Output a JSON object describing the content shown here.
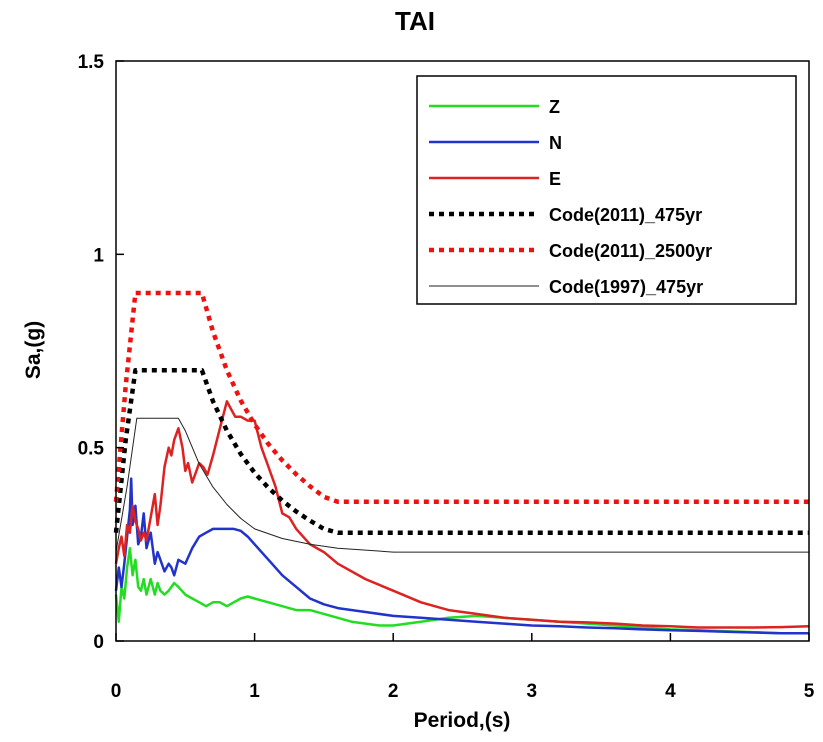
{
  "chart_data": {
    "type": "line",
    "title": "TAI",
    "xlabel": "Period,(s)",
    "ylabel": "Sa,(g)",
    "xlim": [
      0,
      5
    ],
    "ylim": [
      0,
      1.5
    ],
    "x_ticks": [
      {
        "value": 0,
        "label": "0"
      },
      {
        "value": 1,
        "label": "1"
      },
      {
        "value": 2,
        "label": "2"
      },
      {
        "value": 3,
        "label": "3"
      },
      {
        "value": 4,
        "label": "4"
      },
      {
        "value": 5,
        "label": "5"
      }
    ],
    "y_ticks": [
      {
        "value": 0,
        "label": "0"
      },
      {
        "value": 0.5,
        "label": "0.5"
      },
      {
        "value": 1,
        "label": "1"
      },
      {
        "value": 1.5,
        "label": "1.5"
      }
    ],
    "grid": false,
    "legend_position": "top-right",
    "series": [
      {
        "name": "Z",
        "color": "#22dd22",
        "style": "solid",
        "x": [
          0,
          0.02,
          0.04,
          0.06,
          0.08,
          0.1,
          0.12,
          0.14,
          0.16,
          0.18,
          0.2,
          0.22,
          0.25,
          0.28,
          0.3,
          0.32,
          0.35,
          0.38,
          0.4,
          0.42,
          0.45,
          0.5,
          0.55,
          0.6,
          0.65,
          0.7,
          0.75,
          0.8,
          0.85,
          0.9,
          0.95,
          1.0,
          1.05,
          1.1,
          1.2,
          1.3,
          1.4,
          1.5,
          1.6,
          1.7,
          1.8,
          1.9,
          2.0,
          2.2,
          2.4,
          2.6,
          2.8,
          3.0,
          3.2,
          3.4,
          3.6,
          3.8,
          4.0,
          4.2,
          4.4,
          4.6,
          4.8,
          5.0
        ],
        "y": [
          0.12,
          0.05,
          0.14,
          0.11,
          0.19,
          0.24,
          0.17,
          0.21,
          0.14,
          0.13,
          0.16,
          0.12,
          0.16,
          0.12,
          0.15,
          0.13,
          0.12,
          0.13,
          0.14,
          0.15,
          0.14,
          0.12,
          0.11,
          0.1,
          0.09,
          0.1,
          0.1,
          0.09,
          0.1,
          0.11,
          0.115,
          0.11,
          0.105,
          0.1,
          0.09,
          0.08,
          0.08,
          0.07,
          0.06,
          0.05,
          0.045,
          0.04,
          0.04,
          0.05,
          0.06,
          0.065,
          0.06,
          0.055,
          0.05,
          0.045,
          0.04,
          0.035,
          0.03,
          0.028,
          0.025,
          0.023,
          0.02,
          0.02
        ]
      },
      {
        "name": "N",
        "color": "#2233cc",
        "style": "solid",
        "x": [
          0,
          0.02,
          0.04,
          0.06,
          0.08,
          0.1,
          0.11,
          0.12,
          0.14,
          0.16,
          0.18,
          0.2,
          0.22,
          0.25,
          0.28,
          0.3,
          0.32,
          0.35,
          0.38,
          0.4,
          0.42,
          0.45,
          0.5,
          0.55,
          0.6,
          0.65,
          0.7,
          0.75,
          0.8,
          0.85,
          0.9,
          0.95,
          1.0,
          1.1,
          1.2,
          1.3,
          1.4,
          1.5,
          1.6,
          1.8,
          2.0,
          2.2,
          2.4,
          2.6,
          2.8,
          3.0,
          3.2,
          3.4,
          3.6,
          3.8,
          4.0,
          4.2,
          4.4,
          4.6,
          4.8,
          5.0
        ],
        "y": [
          0.13,
          0.19,
          0.14,
          0.2,
          0.27,
          0.34,
          0.42,
          0.3,
          0.35,
          0.25,
          0.27,
          0.33,
          0.24,
          0.28,
          0.2,
          0.23,
          0.21,
          0.18,
          0.2,
          0.19,
          0.17,
          0.21,
          0.2,
          0.24,
          0.27,
          0.28,
          0.29,
          0.29,
          0.29,
          0.29,
          0.285,
          0.27,
          0.25,
          0.21,
          0.17,
          0.14,
          0.11,
          0.095,
          0.085,
          0.075,
          0.065,
          0.06,
          0.055,
          0.05,
          0.045,
          0.04,
          0.038,
          0.035,
          0.033,
          0.03,
          0.028,
          0.026,
          0.024,
          0.022,
          0.02,
          0.02
        ]
      },
      {
        "name": "E",
        "color": "#dd2222",
        "style": "solid",
        "x": [
          0,
          0.02,
          0.04,
          0.06,
          0.08,
          0.1,
          0.12,
          0.14,
          0.16,
          0.18,
          0.2,
          0.22,
          0.25,
          0.28,
          0.3,
          0.32,
          0.35,
          0.38,
          0.4,
          0.42,
          0.45,
          0.48,
          0.5,
          0.52,
          0.55,
          0.58,
          0.6,
          0.63,
          0.66,
          0.7,
          0.75,
          0.8,
          0.83,
          0.86,
          0.9,
          0.95,
          1.0,
          1.05,
          1.1,
          1.15,
          1.2,
          1.25,
          1.3,
          1.4,
          1.5,
          1.6,
          1.8,
          2.0,
          2.2,
          2.4,
          2.6,
          2.8,
          3.0,
          3.2,
          3.4,
          3.6,
          3.8,
          4.0,
          4.2,
          4.4,
          4.6,
          4.8,
          5.0
        ],
        "y": [
          0.2,
          0.24,
          0.27,
          0.22,
          0.3,
          0.28,
          0.35,
          0.31,
          0.29,
          0.26,
          0.28,
          0.26,
          0.32,
          0.38,
          0.3,
          0.35,
          0.45,
          0.5,
          0.48,
          0.52,
          0.55,
          0.5,
          0.44,
          0.46,
          0.41,
          0.44,
          0.46,
          0.45,
          0.43,
          0.48,
          0.55,
          0.62,
          0.6,
          0.58,
          0.58,
          0.57,
          0.57,
          0.5,
          0.45,
          0.4,
          0.33,
          0.32,
          0.29,
          0.25,
          0.23,
          0.2,
          0.16,
          0.13,
          0.1,
          0.08,
          0.07,
          0.06,
          0.055,
          0.05,
          0.048,
          0.045,
          0.04,
          0.038,
          0.035,
          0.035,
          0.035,
          0.036,
          0.038
        ]
      },
      {
        "name": "Code(2011)_475yr",
        "color": "#000000",
        "style": "dotted",
        "x": [
          0,
          0.07,
          0.14,
          0.62,
          0.7,
          0.8,
          0.9,
          1.0,
          1.1,
          1.2,
          1.3,
          1.4,
          1.5,
          1.6,
          1.7,
          1.8,
          1.9,
          2.0,
          2.5,
          3.0,
          3.5,
          4.0,
          4.5,
          5.0
        ],
        "y": [
          0.28,
          0.52,
          0.7,
          0.7,
          0.62,
          0.544,
          0.484,
          0.435,
          0.396,
          0.363,
          0.335,
          0.311,
          0.29,
          0.28,
          0.28,
          0.28,
          0.28,
          0.28,
          0.28,
          0.28,
          0.28,
          0.28,
          0.28,
          0.28
        ]
      },
      {
        "name": "Code(2011)_2500yr",
        "color": "#ee1111",
        "style": "dotted",
        "x": [
          0,
          0.07,
          0.14,
          0.62,
          0.7,
          0.8,
          0.9,
          1.0,
          1.1,
          1.2,
          1.3,
          1.4,
          1.5,
          1.6,
          1.7,
          1.8,
          1.9,
          2.0,
          2.5,
          3.0,
          3.5,
          4.0,
          4.5,
          5.0
        ],
        "y": [
          0.36,
          0.66,
          0.9,
          0.9,
          0.8,
          0.7,
          0.622,
          0.56,
          0.509,
          0.467,
          0.431,
          0.4,
          0.373,
          0.36,
          0.36,
          0.36,
          0.36,
          0.36,
          0.36,
          0.36,
          0.36,
          0.36,
          0.36,
          0.36
        ]
      },
      {
        "name": "Code(1997)_475yr",
        "color": "#222222",
        "style": "thin",
        "x": [
          0,
          0.08,
          0.15,
          0.45,
          0.5,
          0.6,
          0.7,
          0.8,
          0.9,
          1.0,
          1.2,
          1.4,
          1.6,
          1.8,
          2.0,
          2.5,
          3.0,
          3.5,
          4.0,
          4.5,
          5.0
        ],
        "y": [
          0.23,
          0.4,
          0.576,
          0.576,
          0.544,
          0.458,
          0.398,
          0.353,
          0.317,
          0.29,
          0.265,
          0.25,
          0.24,
          0.235,
          0.23,
          0.23,
          0.23,
          0.23,
          0.23,
          0.23,
          0.23
        ]
      }
    ]
  }
}
